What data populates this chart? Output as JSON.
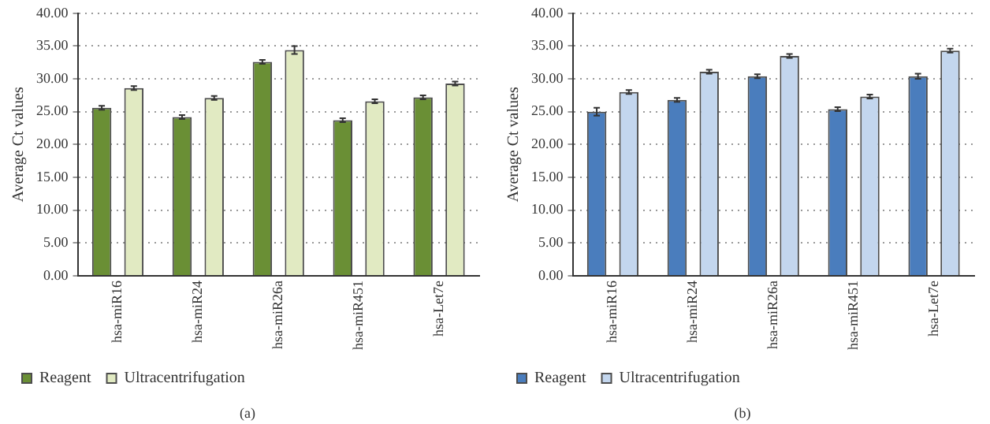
{
  "chart_data": [
    {
      "type": "bar",
      "ylabel": "Average Ct values",
      "categories": [
        "hsa-miR16",
        "hsa-miR24",
        "hsa-miR26a",
        "hsa-miR451",
        "hsa-Let7e"
      ],
      "series": [
        {
          "name": "Reagent",
          "color": "#6a8f35",
          "values": [
            25.6,
            24.2,
            32.6,
            23.7,
            27.2
          ],
          "errors": [
            0.3,
            0.3,
            0.3,
            0.3,
            0.3
          ]
        },
        {
          "name": "Ultracentrifugation",
          "color": "#e1eac2",
          "values": [
            28.6,
            27.1,
            34.4,
            26.6,
            29.3
          ],
          "errors": [
            0.3,
            0.3,
            0.6,
            0.3,
            0.3
          ]
        }
      ],
      "ylim": [
        0,
        40
      ],
      "yticks": [
        {
          "value": 0,
          "label": "0.00"
        },
        {
          "value": 5,
          "label": "5.00"
        },
        {
          "value": 10,
          "label": "10.00"
        },
        {
          "value": 15,
          "label": "15.00"
        },
        {
          "value": 20,
          "label": "20.00"
        },
        {
          "value": 25,
          "label": "25.00"
        },
        {
          "value": 30,
          "label": "30.00"
        },
        {
          "value": 35,
          "label": "35.00"
        },
        {
          "value": 40,
          "label": "40.00"
        }
      ],
      "grid": "y",
      "legend": "bottom left",
      "annotations": [
        "(a)"
      ]
    },
    {
      "type": "bar",
      "ylabel": "Average Ct values",
      "categories": [
        "hsa-miR16",
        "hsa-miR24",
        "hsa-miR26a",
        "hsa-miR451",
        "hsa-Let7e"
      ],
      "series": [
        {
          "name": "Reagent",
          "color": "#4a7dbd",
          "values": [
            25.0,
            26.8,
            30.4,
            25.4,
            30.4
          ],
          "errors": [
            0.6,
            0.3,
            0.3,
            0.3,
            0.4
          ]
        },
        {
          "name": "Ultracentrifugation",
          "color": "#c3d6ee",
          "values": [
            28.0,
            31.1,
            33.5,
            27.3,
            34.3
          ],
          "errors": [
            0.3,
            0.3,
            0.3,
            0.3,
            0.3
          ]
        }
      ],
      "ylim": [
        0,
        40
      ],
      "yticks": [
        {
          "value": 0,
          "label": "0.00"
        },
        {
          "value": 5,
          "label": "5.00"
        },
        {
          "value": 10,
          "label": "10.00"
        },
        {
          "value": 15,
          "label": "15.00"
        },
        {
          "value": 20,
          "label": "20.00"
        },
        {
          "value": 25,
          "label": "25.00"
        },
        {
          "value": 30,
          "label": "30.00"
        },
        {
          "value": 35,
          "label": "35.00"
        },
        {
          "value": 40,
          "label": "40.00"
        }
      ],
      "grid": "y",
      "legend": "bottom left",
      "annotations": [
        "(b)"
      ]
    }
  ]
}
